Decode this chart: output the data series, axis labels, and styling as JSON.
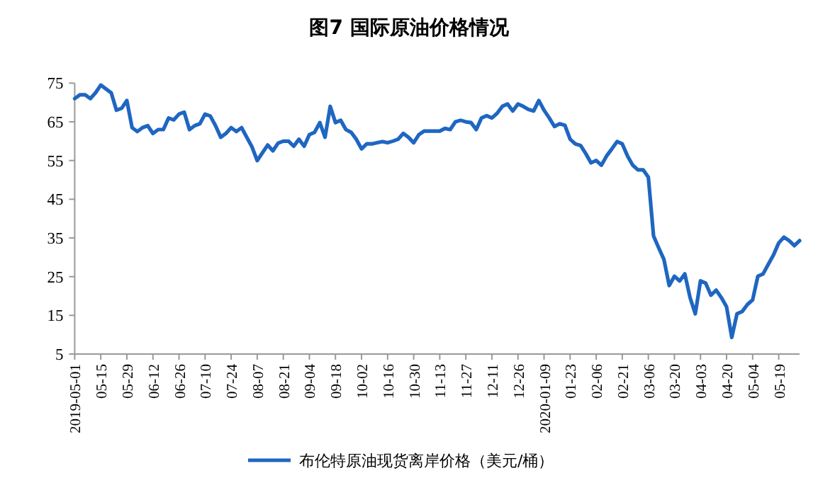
{
  "chart_data": {
    "type": "line",
    "title": "图7  国际原油价格情况",
    "categories": [
      "2019-05-01",
      null,
      null,
      null,
      null,
      "05-15",
      null,
      null,
      null,
      null,
      "05-29",
      null,
      null,
      null,
      null,
      "06-12",
      null,
      null,
      null,
      null,
      "06-26",
      null,
      null,
      null,
      null,
      "07-10",
      null,
      null,
      null,
      null,
      "07-24",
      null,
      null,
      null,
      null,
      "08-07",
      null,
      null,
      null,
      null,
      "08-21",
      null,
      null,
      null,
      null,
      "09-04",
      null,
      null,
      null,
      null,
      "09-18",
      null,
      null,
      null,
      null,
      "10-02",
      null,
      null,
      null,
      null,
      "10-16",
      null,
      null,
      null,
      null,
      "10-30",
      null,
      null,
      null,
      null,
      "11-13",
      null,
      null,
      null,
      null,
      "11-27",
      null,
      null,
      null,
      null,
      "12-11",
      null,
      null,
      null,
      null,
      "12-26",
      null,
      null,
      null,
      null,
      "2020-01-09",
      null,
      null,
      null,
      null,
      "01-23",
      null,
      null,
      null,
      null,
      "02-06",
      null,
      null,
      null,
      null,
      "02-21",
      null,
      null,
      null,
      null,
      "03-06",
      null,
      null,
      null,
      null,
      "03-20",
      null,
      null,
      null,
      null,
      "04-03",
      null,
      null,
      null,
      null,
      "04-20",
      null,
      null,
      null,
      null,
      "05-04",
      null,
      null,
      null,
      null,
      "05-19",
      null,
      null,
      null,
      null
    ],
    "series": [
      {
        "name": "布伦特原油现货离岸价格（美元/桶）",
        "color": "#1f66c1",
        "values": [
          71,
          72,
          72,
          71,
          72.5,
          74.5,
          73.5,
          72.5,
          68,
          68.5,
          70.5,
          63.5,
          62.5,
          63.5,
          64,
          62,
          63,
          63,
          66,
          65.5,
          67,
          67.5,
          63,
          64,
          64.5,
          67,
          66.5,
          64,
          61,
          62,
          63.5,
          62.5,
          63.5,
          61,
          58.5,
          55,
          57,
          59,
          57.5,
          59.5,
          60,
          60,
          58.7,
          60.5,
          58.7,
          61.7,
          62.3,
          64.8,
          61,
          69,
          64.8,
          65.4,
          63,
          62.3,
          60.5,
          58,
          59.3,
          59.3,
          59.6,
          59.9,
          59.6,
          60,
          60.5,
          62,
          61,
          59.6,
          61.7,
          62.6,
          62.6,
          62.6,
          62.6,
          63.3,
          63,
          65,
          65.4,
          65,
          64.8,
          63,
          66,
          66.6,
          66,
          67.2,
          69,
          69.6,
          67.8,
          69.6,
          69,
          68.2,
          67.8,
          70.5,
          68,
          66,
          63.8,
          64.5,
          64.1,
          60.5,
          59.3,
          58.9,
          56.8,
          54.4,
          55,
          53.8,
          56.2,
          58,
          59.9,
          59.3,
          56.2,
          53.8,
          52.6,
          52.6,
          50.7,
          35.5,
          32.4,
          29.4,
          22.7,
          25.1,
          23.9,
          25.7,
          19.6,
          15.4,
          23.9,
          23.3,
          20.2,
          21.5,
          19.6,
          17.2,
          9.3,
          15.4,
          16,
          17.8,
          19,
          25.1,
          25.7,
          28.2,
          30.6,
          33.7,
          35.2,
          34.3,
          33,
          34.3
        ]
      }
    ],
    "ylim": [
      5,
      75
    ],
    "yticks": [
      5,
      15,
      25,
      35,
      45,
      55,
      65,
      75
    ],
    "grid": false,
    "legend": "bottom",
    "marker": "none",
    "line_style": "solid"
  }
}
